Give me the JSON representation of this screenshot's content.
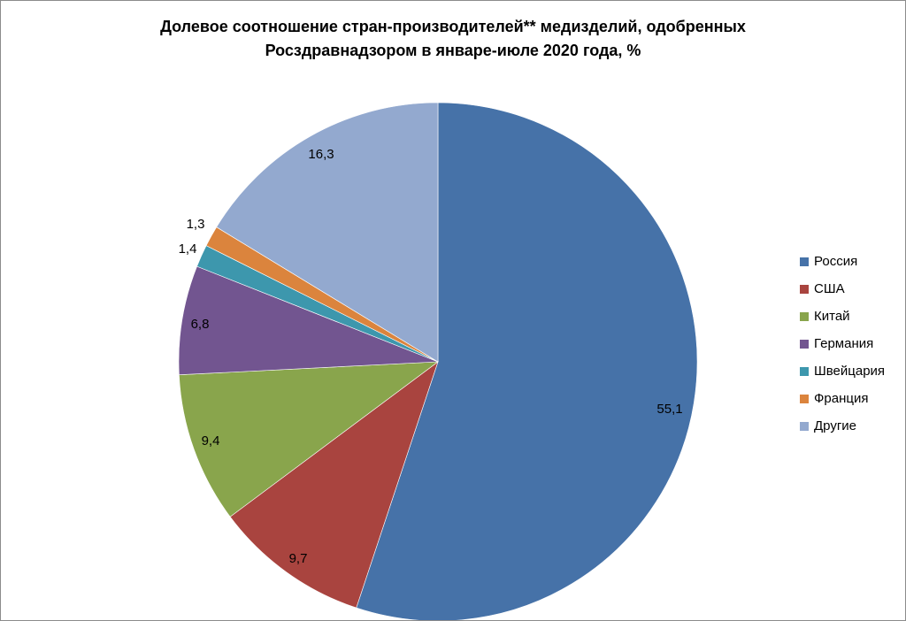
{
  "title": {
    "line1": "Долевое соотношение стран-производителей** медизделий, одобренных",
    "line2": "Росздравнадзором в январе-июле 2020 года, %"
  },
  "chart_data": {
    "type": "pie",
    "title": "Долевое соотношение стран-производителей** медизделий, одобренных Росздравнадзором в январе-июле 2020 года, %",
    "legend_position": "right",
    "slices": [
      {
        "label": "Россия",
        "value": 55.1,
        "value_label": "55,1",
        "color": "#4672A8"
      },
      {
        "label": "США",
        "value": 9.7,
        "value_label": "9,7",
        "color": "#A9443F"
      },
      {
        "label": "Китай",
        "value": 9.4,
        "value_label": "9,4",
        "color": "#89A54C"
      },
      {
        "label": "Германия",
        "value": 6.8,
        "value_label": "6,8",
        "color": "#725590"
      },
      {
        "label": "Швейцария",
        "value": 1.4,
        "value_label": "1,4",
        "color": "#3D97AD"
      },
      {
        "label": "Франция",
        "value": 1.3,
        "value_label": "1,3",
        "color": "#DB843D"
      },
      {
        "label": "Другие",
        "value": 16.3,
        "value_label": "16,3",
        "color": "#93A9CF"
      }
    ]
  }
}
